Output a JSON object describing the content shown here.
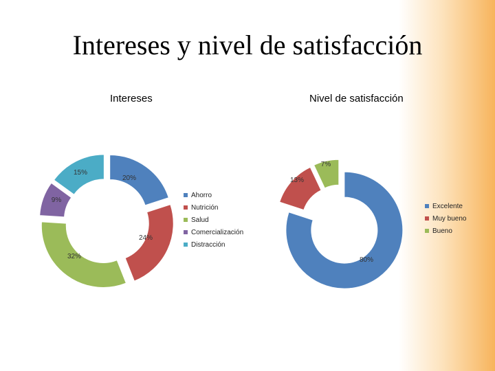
{
  "slide": {
    "title": "Intereses y nivel de satisfacción"
  },
  "chart_data": [
    {
      "type": "pie",
      "title": "Intereses",
      "categories": [
        "Ahorro",
        "Nutrición",
        "Salud",
        "Comercialización",
        "Distracción"
      ],
      "values": [
        20,
        24,
        32,
        9,
        15
      ],
      "labels": [
        "20%",
        "24%",
        "32%",
        "9%",
        "15%"
      ],
      "colors": [
        "#4f81bd",
        "#c0504d",
        "#9bbb59",
        "#8064a2",
        "#4bacc6"
      ],
      "legend": "right",
      "style": "exploded doughnut"
    },
    {
      "type": "pie",
      "title": "Nivel de satisfacción",
      "categories": [
        "Excelente",
        "Muy bueno",
        "Bueno"
      ],
      "values": [
        80,
        13,
        7
      ],
      "labels": [
        "80%",
        "13%",
        "7%"
      ],
      "colors": [
        "#4f81bd",
        "#c0504d",
        "#9bbb59"
      ],
      "legend": "right",
      "style": "exploded doughnut"
    }
  ]
}
